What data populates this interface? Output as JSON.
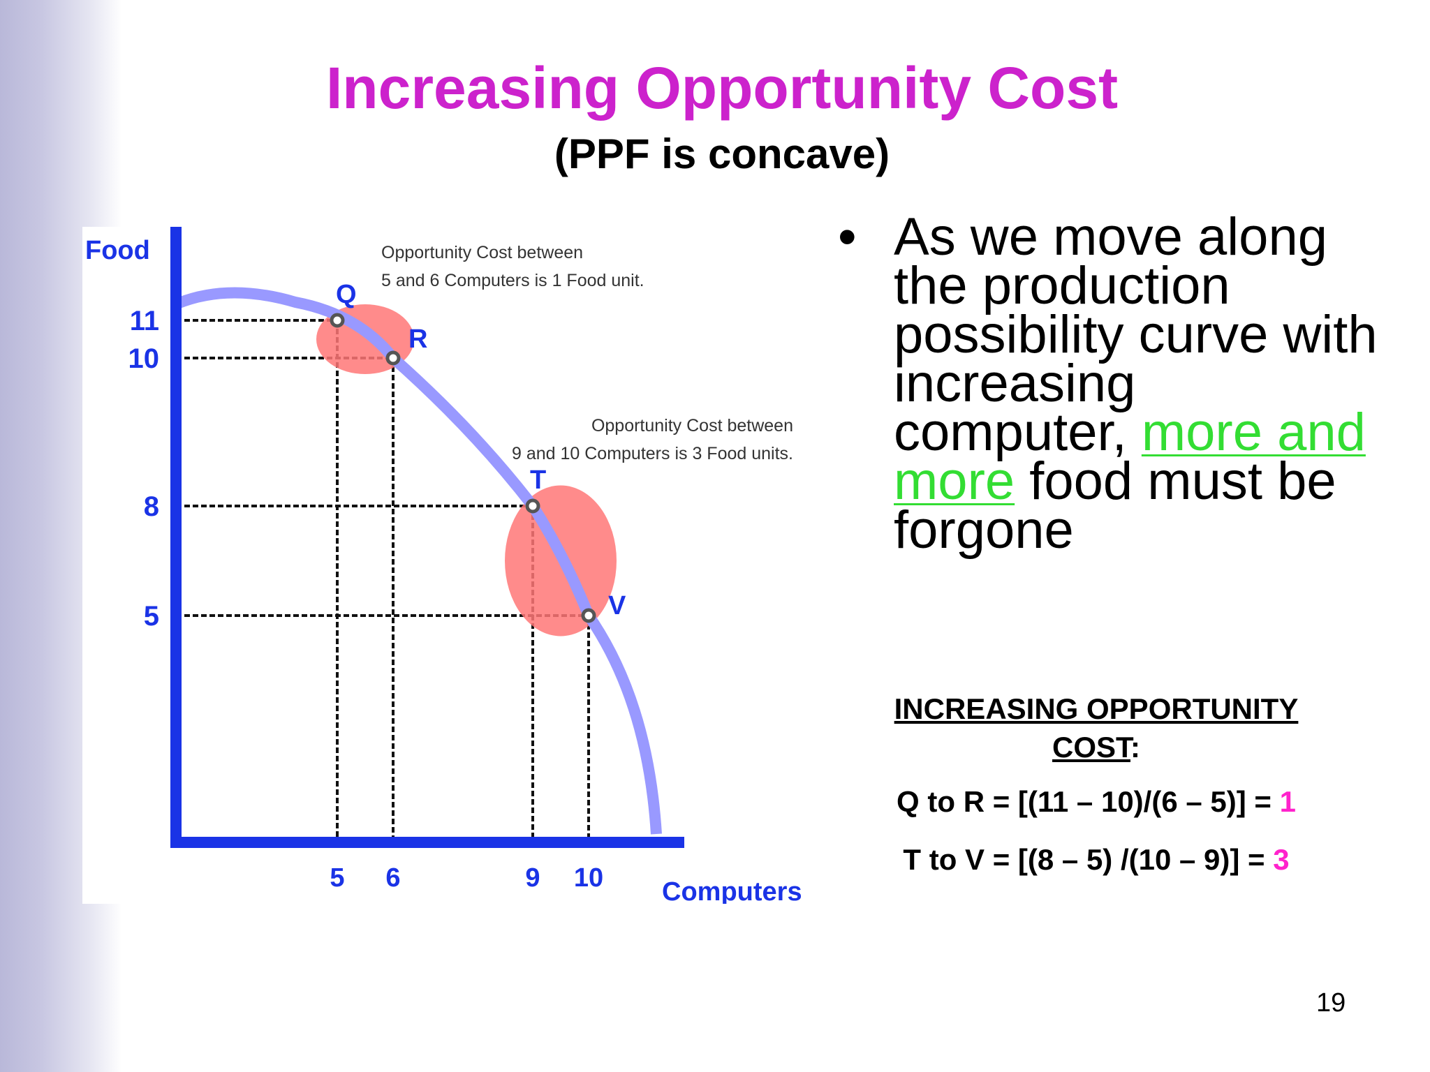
{
  "slide": {
    "title": "Increasing Opportunity Cost",
    "subtitle": "(PPF is concave)",
    "page_number": "19"
  },
  "bullet": {
    "marker": "•",
    "text_before": "As we move along the production possibility curve with increasing computer, ",
    "text_highlight": "more and more",
    "text_after": " food must be forgone"
  },
  "summary": {
    "heading_line1": "INCREASING OPPORTUNITY",
    "heading_line2": "COST",
    "heading_colon": ":",
    "formula_qr": "Q to R = [(11 – 10)/(6 – 5)] = ",
    "result_qr": "1",
    "formula_tv": "T to V = [(8 – 5) /(10 – 9)] = ",
    "result_tv": "3"
  },
  "colors": {
    "title": "#cc22cc",
    "axis": "#1a33e6",
    "curve": "#9999ff",
    "highlight_ellipse": "#ff7777",
    "green_text": "#33dd33",
    "result_magenta": "#ff22cc"
  },
  "chart_data": {
    "type": "line",
    "xlabel": "Computers",
    "ylabel": "Food",
    "xticks": [
      "5",
      "6",
      "9",
      "10"
    ],
    "yticks": [
      "11",
      "10",
      "8",
      "5"
    ],
    "points": [
      {
        "label": "Q",
        "x": 5,
        "y": 11
      },
      {
        "label": "R",
        "x": 6,
        "y": 10
      },
      {
        "label": "T",
        "x": 9,
        "y": 8
      },
      {
        "label": "V",
        "x": 10,
        "y": 5
      }
    ],
    "annotations": [
      {
        "line1": "Opportunity Cost between",
        "line2": "5 and 6 Computers is 1 Food unit."
      },
      {
        "line1": "Opportunity Cost between",
        "line2": "9 and 10 Computers is 3 Food units."
      }
    ]
  }
}
